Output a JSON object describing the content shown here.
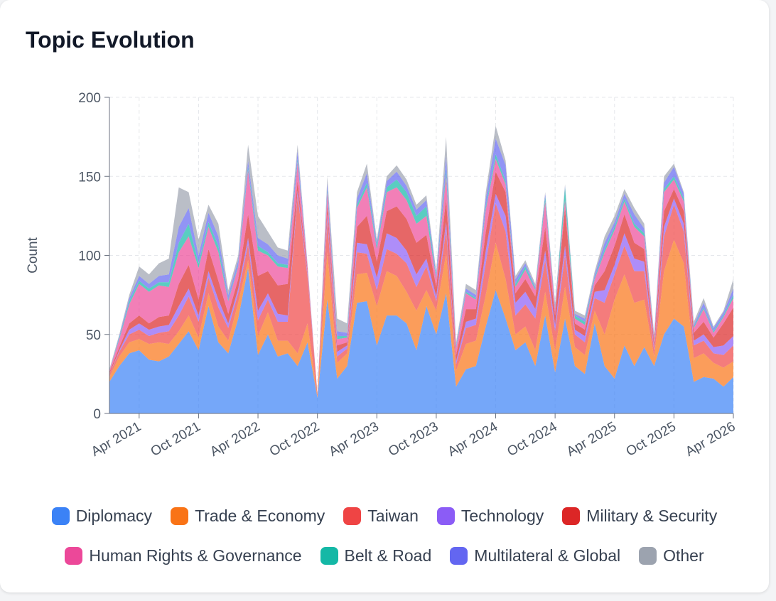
{
  "chart_data": {
    "type": "stacked-area",
    "title": "Topic Evolution",
    "y_label": "Count",
    "x": [
      "2021-01",
      "2021-02",
      "2021-03",
      "2021-04",
      "2021-05",
      "2021-06",
      "2021-07",
      "2021-08",
      "2021-09",
      "2021-10",
      "2021-11",
      "2021-12",
      "2022-01",
      "2022-02",
      "2022-03",
      "2022-04",
      "2022-05",
      "2022-06",
      "2022-07",
      "2022-08",
      "2022-09",
      "2022-10",
      "2022-11",
      "2022-12",
      "2023-01",
      "2023-02",
      "2023-03",
      "2023-04",
      "2023-05",
      "2023-06",
      "2023-07",
      "2023-08",
      "2023-09",
      "2023-10",
      "2023-11",
      "2023-12",
      "2024-01",
      "2024-02",
      "2024-03",
      "2024-04",
      "2024-05",
      "2024-06",
      "2024-07",
      "2024-08",
      "2024-09",
      "2024-10",
      "2024-11",
      "2024-12",
      "2025-01",
      "2025-02",
      "2025-03",
      "2025-04",
      "2025-05",
      "2025-06",
      "2025-07",
      "2025-08",
      "2025-09",
      "2025-10",
      "2025-11",
      "2025-12",
      "2026-01",
      "2026-02",
      "2026-03",
      "2026-04"
    ],
    "xlim": [
      "2021-01",
      "2026-04"
    ],
    "xticks": [
      {
        "value": "2021-04",
        "label": "Apr 2021"
      },
      {
        "value": "2021-10",
        "label": "Oct 2021"
      },
      {
        "value": "2022-04",
        "label": "Apr 2022"
      },
      {
        "value": "2022-10",
        "label": "Oct 2022"
      },
      {
        "value": "2023-04",
        "label": "Apr 2023"
      },
      {
        "value": "2023-10",
        "label": "Oct 2023"
      },
      {
        "value": "2024-04",
        "label": "Apr 2024"
      },
      {
        "value": "2024-10",
        "label": "Oct 2024"
      },
      {
        "value": "2025-04",
        "label": "Apr 2025"
      },
      {
        "value": "2025-10",
        "label": "Oct 2025"
      },
      {
        "value": "2026-04",
        "label": "Apr 2026"
      }
    ],
    "ylim": [
      0,
      200
    ],
    "yticks": [
      0,
      50,
      100,
      150,
      200
    ],
    "grid": true,
    "series": [
      {
        "name": "Diplomacy",
        "color": "#3b82f6",
        "values": [
          20,
          30,
          38,
          40,
          34,
          33,
          36,
          44,
          52,
          40,
          68,
          45,
          38,
          60,
          92,
          37,
          50,
          36,
          38,
          30,
          45,
          10,
          72,
          22,
          30,
          70,
          71,
          43,
          62,
          62,
          57,
          40,
          68,
          50,
          76,
          17,
          28,
          30,
          55,
          78,
          60,
          40,
          45,
          30,
          62,
          26,
          60,
          30,
          25,
          57,
          30,
          22,
          43,
          30,
          42,
          30,
          50,
          60,
          55,
          20,
          23,
          22,
          17,
          23
        ]
      },
      {
        "name": "Trade & Economy",
        "color": "#f97316",
        "values": [
          3,
          6,
          7,
          7,
          10,
          12,
          8,
          8,
          10,
          8,
          8,
          10,
          8,
          10,
          5,
          12,
          14,
          10,
          8,
          8,
          12,
          1,
          30,
          10,
          8,
          18,
          18,
          25,
          28,
          25,
          20,
          25,
          10,
          15,
          25,
          10,
          16,
          16,
          20,
          30,
          25,
          10,
          10,
          10,
          15,
          14,
          20,
          12,
          12,
          8,
          20,
          50,
          45,
          40,
          30,
          6,
          40,
          50,
          40,
          15,
          15,
          10,
          12,
          10
        ]
      },
      {
        "name": "Taiwan",
        "color": "#ef4444",
        "values": [
          2,
          3,
          5,
          6,
          5,
          6,
          8,
          10,
          12,
          10,
          10,
          12,
          8,
          6,
          10,
          10,
          8,
          12,
          12,
          100,
          30,
          1,
          20,
          4,
          3,
          14,
          12,
          10,
          14,
          14,
          18,
          15,
          15,
          6,
          15,
          4,
          10,
          10,
          20,
          25,
          30,
          12,
          14,
          20,
          20,
          12,
          20,
          8,
          8,
          8,
          20,
          16,
          18,
          20,
          18,
          4,
          22,
          22,
          20,
          8,
          8,
          6,
          8,
          10
        ]
      },
      {
        "name": "Technology",
        "color": "#8b5cf6",
        "values": [
          0,
          1,
          3,
          4,
          4,
          4,
          4,
          6,
          5,
          4,
          4,
          5,
          3,
          3,
          4,
          6,
          4,
          5,
          4,
          3,
          2,
          0,
          4,
          3,
          2,
          6,
          6,
          8,
          10,
          10,
          8,
          8,
          5,
          3,
          5,
          2,
          4,
          4,
          8,
          6,
          10,
          8,
          8,
          6,
          6,
          4,
          6,
          3,
          4,
          4,
          8,
          6,
          8,
          8,
          6,
          2,
          6,
          4,
          5,
          3,
          4,
          4,
          6,
          6
        ]
      },
      {
        "name": "Military & Security",
        "color": "#dc2626",
        "values": [
          1,
          2,
          4,
          5,
          4,
          6,
          6,
          14,
          15,
          10,
          14,
          12,
          6,
          6,
          15,
          22,
          14,
          18,
          20,
          6,
          2,
          0,
          6,
          4,
          2,
          10,
          18,
          10,
          14,
          20,
          20,
          20,
          15,
          6,
          15,
          4,
          8,
          6,
          12,
          14,
          15,
          6,
          8,
          8,
          15,
          6,
          24,
          4,
          4,
          4,
          12,
          12,
          12,
          10,
          8,
          3,
          10,
          6,
          8,
          5,
          8,
          6,
          14,
          18
        ]
      },
      {
        "name": "Human Rights & Governance",
        "color": "#ec4899",
        "values": [
          1,
          5,
          12,
          20,
          20,
          20,
          18,
          20,
          18,
          20,
          14,
          18,
          8,
          8,
          28,
          16,
          10,
          12,
          10,
          12,
          2,
          0,
          8,
          4,
          3,
          12,
          18,
          8,
          12,
          12,
          12,
          12,
          12,
          5,
          15,
          4,
          10,
          6,
          14,
          8,
          5,
          4,
          6,
          4,
          16,
          4,
          5,
          3,
          3,
          4,
          12,
          10,
          8,
          10,
          8,
          2,
          12,
          6,
          6,
          3,
          8,
          3,
          4,
          6
        ]
      },
      {
        "name": "Belt & Road",
        "color": "#14b8a6",
        "values": [
          0,
          1,
          2,
          2,
          2,
          2,
          3,
          6,
          8,
          3,
          3,
          4,
          1,
          1,
          2,
          3,
          2,
          2,
          2,
          2,
          0,
          0,
          2,
          2,
          1,
          2,
          3,
          2,
          3,
          5,
          5,
          5,
          6,
          1,
          4,
          1,
          1,
          1,
          2,
          3,
          2,
          2,
          2,
          1,
          3,
          1,
          8,
          2,
          2,
          1,
          2,
          2,
          2,
          2,
          2,
          1,
          2,
          2,
          2,
          1,
          1,
          1,
          1,
          2
        ]
      },
      {
        "name": "Multilateral & Global",
        "color": "#6366f1",
        "values": [
          0,
          1,
          2,
          3,
          3,
          4,
          5,
          10,
          10,
          5,
          6,
          6,
          3,
          3,
          4,
          5,
          5,
          5,
          4,
          5,
          1,
          0,
          4,
          3,
          2,
          4,
          6,
          2,
          4,
          5,
          4,
          4,
          4,
          2,
          8,
          1,
          2,
          2,
          5,
          10,
          10,
          3,
          2,
          1,
          2,
          1,
          1,
          1,
          2,
          2,
          4,
          3,
          3,
          6,
          3,
          1,
          4,
          6,
          3,
          1,
          3,
          2,
          2,
          4
        ]
      },
      {
        "name": "Other",
        "color": "#9ca3af",
        "values": [
          1,
          1,
          2,
          6,
          6,
          8,
          10,
          25,
          10,
          10,
          5,
          8,
          3,
          3,
          10,
          14,
          8,
          5,
          5,
          4,
          1,
          0,
          4,
          8,
          6,
          4,
          6,
          2,
          3,
          4,
          4,
          3,
          3,
          2,
          12,
          2,
          3,
          3,
          4,
          8,
          3,
          2,
          2,
          2,
          1,
          2,
          1,
          2,
          2,
          2,
          4,
          4,
          3,
          4,
          3,
          1,
          4,
          2,
          1,
          2,
          3,
          1,
          1,
          6
        ]
      }
    ]
  }
}
